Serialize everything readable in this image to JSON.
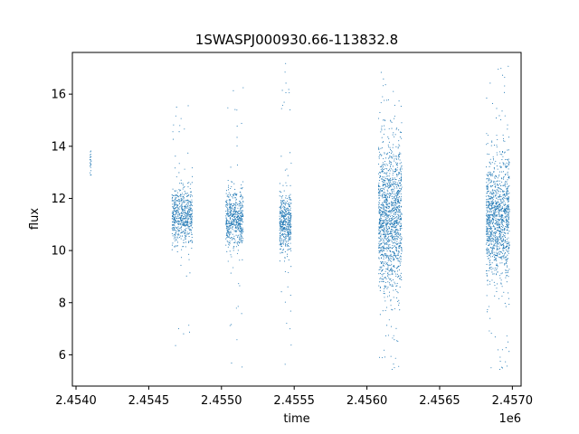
{
  "chart_data": {
    "type": "scatter",
    "title": "1SWASPJ000930.66-113832.8",
    "xlabel": "time",
    "ylabel": "flux",
    "x_offset_label": "1e6",
    "xlim": [
      2453975,
      2457060
    ],
    "ylim": [
      4.8,
      17.6
    ],
    "x_ticks": [
      {
        "value": 2454000,
        "label": "2.4540"
      },
      {
        "value": 2454500,
        "label": "2.4545"
      },
      {
        "value": 2455000,
        "label": "2.4550"
      },
      {
        "value": 2455500,
        "label": "2.4555"
      },
      {
        "value": 2456000,
        "label": "2.4560"
      },
      {
        "value": 2456500,
        "label": "2.4565"
      },
      {
        "value": 2457000,
        "label": "2.4570"
      }
    ],
    "y_ticks": [
      {
        "value": 6,
        "label": "6"
      },
      {
        "value": 8,
        "label": "8"
      },
      {
        "value": 10,
        "label": "10"
      },
      {
        "value": 12,
        "label": "12"
      },
      {
        "value": 14,
        "label": "14"
      },
      {
        "value": 16,
        "label": "16"
      }
    ],
    "grid": false,
    "color": "#1f77b4",
    "clusters": [
      {
        "t_start": 2454095,
        "t_end": 2454105,
        "center": 13.4,
        "spread": 0.3,
        "outlier_min": 12.9,
        "outlier_max": 14.0,
        "n": 25
      },
      {
        "t_start": 2454660,
        "t_end": 2454800,
        "center": 11.3,
        "spread": 0.55,
        "outlier_min": 6.0,
        "outlier_max": 15.8,
        "n": 600
      },
      {
        "t_start": 2455030,
        "t_end": 2455150,
        "center": 11.2,
        "spread": 0.55,
        "outlier_min": 5.5,
        "outlier_max": 16.4,
        "n": 550
      },
      {
        "t_start": 2455400,
        "t_end": 2455480,
        "center": 11.0,
        "spread": 0.55,
        "outlier_min": 5.6,
        "outlier_max": 17.2,
        "n": 450
      },
      {
        "t_start": 2456080,
        "t_end": 2456240,
        "center": 11.3,
        "spread": 1.35,
        "outlier_min": 5.3,
        "outlier_max": 17.1,
        "n": 1400
      },
      {
        "t_start": 2456820,
        "t_end": 2456980,
        "center": 11.2,
        "spread": 1.15,
        "outlier_min": 5.3,
        "outlier_max": 17.1,
        "n": 1200
      }
    ]
  }
}
